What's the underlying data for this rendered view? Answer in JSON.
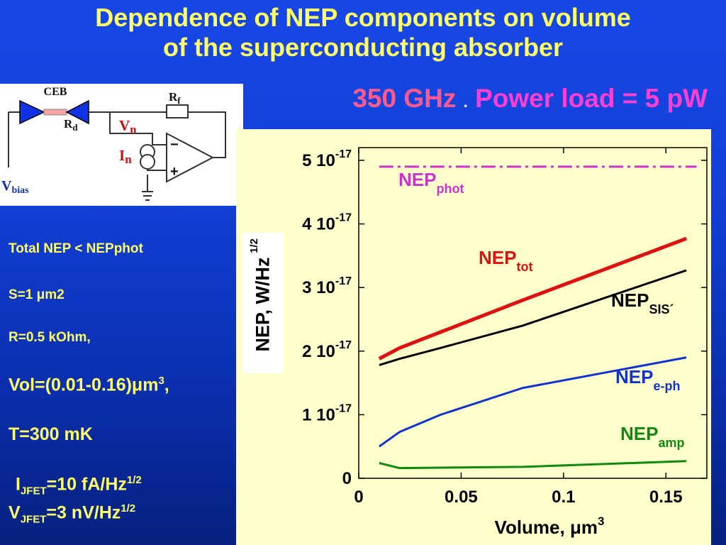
{
  "title_line1": "Dependence of NEP components on volume",
  "title_line2": "of the superconducting absorber",
  "subtitle": {
    "freq": "350 GHz",
    "sep": ".",
    "power": "Power load = 5 pW"
  },
  "circuit": {
    "ceb": "CEB",
    "rd": "R",
    "rd_sub": "d",
    "rf": "R",
    "rf_sub": "f",
    "vn": "V",
    "vn_sub": "n",
    "in": "I",
    "in_sub": "n",
    "vbias": "V",
    "vbias_sub": "bias",
    "minus": "−",
    "plus": "+"
  },
  "params": {
    "total": "Total NEP < NEPphot",
    "s": "S=1 μm2",
    "r": "R=0.5 kOhm,",
    "vol_prefix": "Vol=(0.01-0.16)μm",
    "vol_sup": "3",
    "vol_suffix": ",",
    "t": "T=300 mK",
    "ijfet_base": "I",
    "ijfet_sub": "JFET",
    "ijfet_val": "=10 fA/Hz",
    "ijfet_sup": "1/2",
    "vjfet_base": "V",
    "vjfet_sub": "JFET",
    "vjfet_val": "=3 nV/Hz",
    "vjfet_sup": "1/2"
  },
  "chart_data": {
    "type": "line",
    "xlabel": "Volume, μm",
    "xlabel_sup": "3",
    "ylabel": "NEP, W/Hz",
    "ylabel_sup": "1/2",
    "xlim": [
      0,
      0.17
    ],
    "ylim": [
      0,
      5.2e-17
    ],
    "x_ticks": [
      0,
      0.05,
      0.1,
      0.15
    ],
    "x_tick_labels": [
      "0",
      "0.05",
      "0.1",
      "0.15"
    ],
    "y_ticks": [
      0,
      1e-17,
      2e-17,
      3e-17,
      4e-17,
      5e-17
    ],
    "y_tick_labels": [
      {
        "base": "0",
        "exp": ""
      },
      {
        "base": "1 10",
        "exp": "-17"
      },
      {
        "base": "2 10",
        "exp": "-17"
      },
      {
        "base": "3 10",
        "exp": "-17"
      },
      {
        "base": "4 10",
        "exp": "-17"
      },
      {
        "base": "5 10",
        "exp": "-17"
      }
    ],
    "series": [
      {
        "name": "NEP",
        "sub": "phot",
        "color": "#cc33cc",
        "dashed": true,
        "x": [
          0.01,
          0.165
        ],
        "y": [
          4.9e-17,
          4.9e-17
        ]
      },
      {
        "name": "NEP",
        "sub": "tot",
        "color": "#dd1111",
        "dashed": false,
        "x": [
          0.01,
          0.02,
          0.04,
          0.08,
          0.16
        ],
        "y": [
          1.88e-17,
          2.05e-17,
          2.3e-17,
          2.8e-17,
          3.77e-17
        ]
      },
      {
        "name": "NEP",
        "sub": "SIS´",
        "color": "#000000",
        "dashed": false,
        "x": [
          0.01,
          0.02,
          0.04,
          0.08,
          0.16
        ],
        "y": [
          1.78e-17,
          1.88e-17,
          2.05e-17,
          2.4e-17,
          3.27e-17
        ]
      },
      {
        "name": "NEP",
        "sub": "e-ph",
        "color": "#1133cc",
        "dashed": false,
        "x": [
          0.01,
          0.02,
          0.04,
          0.08,
          0.16
        ],
        "y": [
          5e-18,
          7.3e-18,
          1e-17,
          1.42e-17,
          1.9e-17
        ]
      },
      {
        "name": "NEP",
        "sub": "amp",
        "color": "#118811",
        "dashed": false,
        "x": [
          0.01,
          0.02,
          0.08,
          0.16
        ],
        "y": [
          2.4e-18,
          1.6e-18,
          1.8e-18,
          2.7e-18
        ]
      }
    ]
  }
}
